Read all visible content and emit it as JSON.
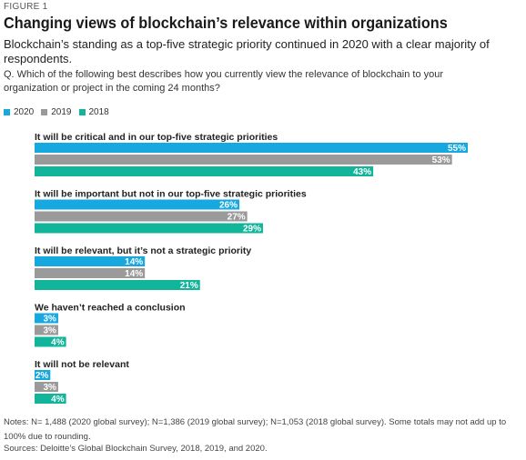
{
  "figure_label": "FIGURE 1",
  "title": "Changing views of blockchain’s relevance within organizations",
  "subtitle": "Blockchain’s standing as a top-five strategic priority continued in 2020 with a clear majority of respondents.",
  "question": "Q. Which of the following best describes how you currently view the relevance of blockchain to your organization or project in the coming 24 months?",
  "notes": "Notes: N= 1,488 (2020 global survey); N=1,386 (2019 global survey); N=1,053 (2018 global survey). Some totals may not add up to 100% due to rounding.",
  "sources": "Sources: Deloitte’s Global Blockchain Survey, 2018, 2019, and 2020.",
  "chart_data": {
    "type": "bar",
    "orientation": "horizontal",
    "categories": [
      "It will be critical and in our top-five strategic priorities",
      "It will be important but not in our top-five strategic priorities",
      "It will be relevant, but it’s not a strategic priority",
      "We haven’t reached a conclusion",
      "It will not be relevant"
    ],
    "series": [
      {
        "name": "2020",
        "color": "#17a8e0",
        "values": [
          55,
          26,
          14,
          3,
          2
        ]
      },
      {
        "name": "2019",
        "color": "#9a9a9a",
        "values": [
          53,
          27,
          14,
          3,
          3
        ]
      },
      {
        "name": "2018",
        "color": "#12b59a",
        "values": [
          43,
          29,
          21,
          4,
          4
        ]
      }
    ],
    "value_suffix": "%",
    "legend_position": "top-left",
    "grid": false
  }
}
